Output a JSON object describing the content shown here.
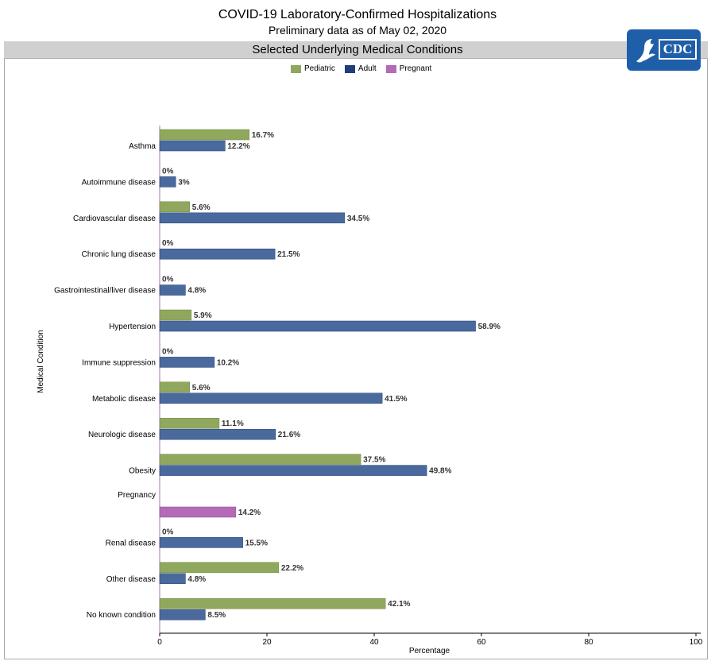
{
  "header": {
    "title": "COVID-19 Laboratory-Confirmed Hospitalizations",
    "subtitle": "Preliminary data as of May 02, 2020",
    "panel_title": "Selected Underlying Medical Conditions",
    "logo_text": "CDC"
  },
  "colors": {
    "pediatric": "#8fa85e",
    "adult": "#4a6a9e",
    "pregnant": "#b36bb8",
    "header_bg": "#d0d0d0",
    "logo_bg": "#1f5ea8"
  },
  "legend": [
    {
      "label": "Pediatric",
      "color": "#8fa85e"
    },
    {
      "label": "Adult",
      "color": "#4a6a9e"
    },
    {
      "label": "Pregnant",
      "color": "#b36bb8"
    }
  ],
  "chart_data": {
    "type": "bar",
    "orientation": "horizontal",
    "title": "Selected Underlying Medical Conditions",
    "xlabel": "Percentage",
    "ylabel": "Medical Condition",
    "xlim": [
      0,
      100
    ],
    "xticks": [
      0,
      20,
      40,
      60,
      80,
      100
    ],
    "legend_position": "top-center",
    "grid": false,
    "categories": [
      "Asthma",
      "Autoimmune disease",
      "Cardiovascular disease",
      "Chronic lung disease",
      "Gastrointestinal/liver disease",
      "Hypertension",
      "Immune suppression",
      "Metabolic disease",
      "Neurologic disease",
      "Obesity",
      "Pregnancy",
      "Renal disease",
      "Other disease",
      "No known condition"
    ],
    "series": [
      {
        "name": "Pediatric",
        "values": [
          16.7,
          0,
          5.6,
          0,
          0,
          5.9,
          0,
          5.6,
          11.1,
          37.5,
          null,
          0,
          22.2,
          42.1
        ],
        "labels": [
          "16.7%",
          "0%",
          "5.6%",
          "0%",
          "0%",
          "5.9%",
          "0%",
          "5.6%",
          "11.1%",
          "37.5%",
          null,
          "0%",
          "22.2%",
          "42.1%"
        ]
      },
      {
        "name": "Adult",
        "values": [
          12.2,
          3,
          34.5,
          21.5,
          4.8,
          58.9,
          10.2,
          41.5,
          21.6,
          49.8,
          null,
          15.5,
          4.8,
          8.5
        ],
        "labels": [
          "12.2%",
          "3%",
          "34.5%",
          "21.5%",
          "4.8%",
          "58.9%",
          "10.2%",
          "41.5%",
          "21.6%",
          "49.8%",
          null,
          "15.5%",
          "4.8%",
          "8.5%"
        ]
      },
      {
        "name": "Pregnant",
        "values": [
          null,
          null,
          null,
          null,
          null,
          null,
          null,
          null,
          null,
          null,
          14.2,
          null,
          null,
          null
        ],
        "labels": [
          null,
          null,
          null,
          null,
          null,
          null,
          null,
          null,
          null,
          null,
          "14.2%",
          null,
          null,
          null
        ]
      }
    ]
  }
}
